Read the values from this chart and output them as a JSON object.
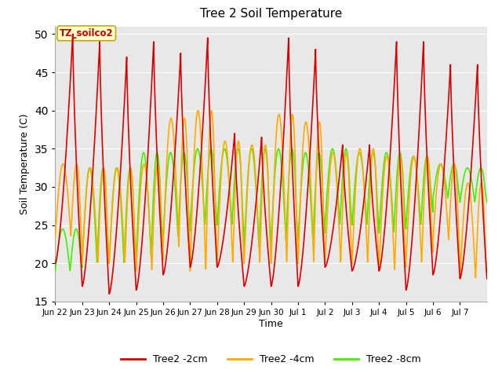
{
  "title": "Tree 2 Soil Temperature",
  "xlabel": "Time",
  "ylabel": "Soil Temperature (C)",
  "ylim": [
    15,
    51
  ],
  "yticks": [
    15,
    20,
    25,
    30,
    35,
    40,
    45,
    50
  ],
  "background_color": "#ffffff",
  "plot_bg_color": "#e8e8e8",
  "grid_color": "#ffffff",
  "annotation_text": "TZ_soilco2",
  "annotation_bg": "#ffffcc",
  "annotation_border": "#ccaa00",
  "series_2cm_color": "#dd0000",
  "series_4cm_color": "#ffaa00",
  "series_8cm_color": "#44ee00",
  "lw": 1.2,
  "x_tick_labels": [
    "Jun 22",
    "Jun 23",
    "Jun 24",
    "Jun 25",
    "Jun 26",
    "Jun 27",
    "Jun 28",
    "Jun 29",
    "Jun 30",
    "Jul 1",
    "Jul 2",
    "Jul 3",
    "Jul 4",
    "Jul 5",
    "Jul 6",
    "Jul 7"
  ],
  "n_days": 16,
  "peaks_2cm": [
    50.0,
    49.0,
    47.0,
    49.0,
    47.5,
    49.5,
    37.0,
    36.5,
    49.5,
    48.0,
    35.5,
    35.5,
    49.0,
    49.0,
    46.0,
    46.0
  ],
  "lows_2cm": [
    20.0,
    17.0,
    16.0,
    16.5,
    18.5,
    19.5,
    19.5,
    17.0,
    17.0,
    17.0,
    19.5,
    19.0,
    19.0,
    16.5,
    18.5,
    18.0
  ],
  "peaks_4cm": [
    33.0,
    32.5,
    32.5,
    33.0,
    39.0,
    40.0,
    36.0,
    35.5,
    39.5,
    38.5,
    34.5,
    35.0,
    34.0,
    34.0,
    33.0,
    30.5
  ],
  "lows_4cm": [
    23.5,
    20.0,
    20.0,
    19.0,
    22.0,
    19.0,
    20.0,
    20.0,
    20.0,
    20.0,
    20.0,
    20.0,
    19.0,
    20.0,
    23.0,
    18.0
  ],
  "peaks_8cm": [
    24.5,
    32.5,
    32.5,
    34.5,
    34.5,
    35.0,
    35.0,
    35.0,
    35.0,
    34.5,
    35.0,
    34.5,
    34.5,
    34.0,
    33.0,
    32.5
  ],
  "lows_8cm": [
    19.0,
    20.0,
    20.0,
    21.0,
    23.5,
    25.0,
    25.0,
    22.0,
    23.0,
    23.0,
    25.0,
    25.0,
    24.0,
    25.0,
    28.5,
    28.0
  ]
}
